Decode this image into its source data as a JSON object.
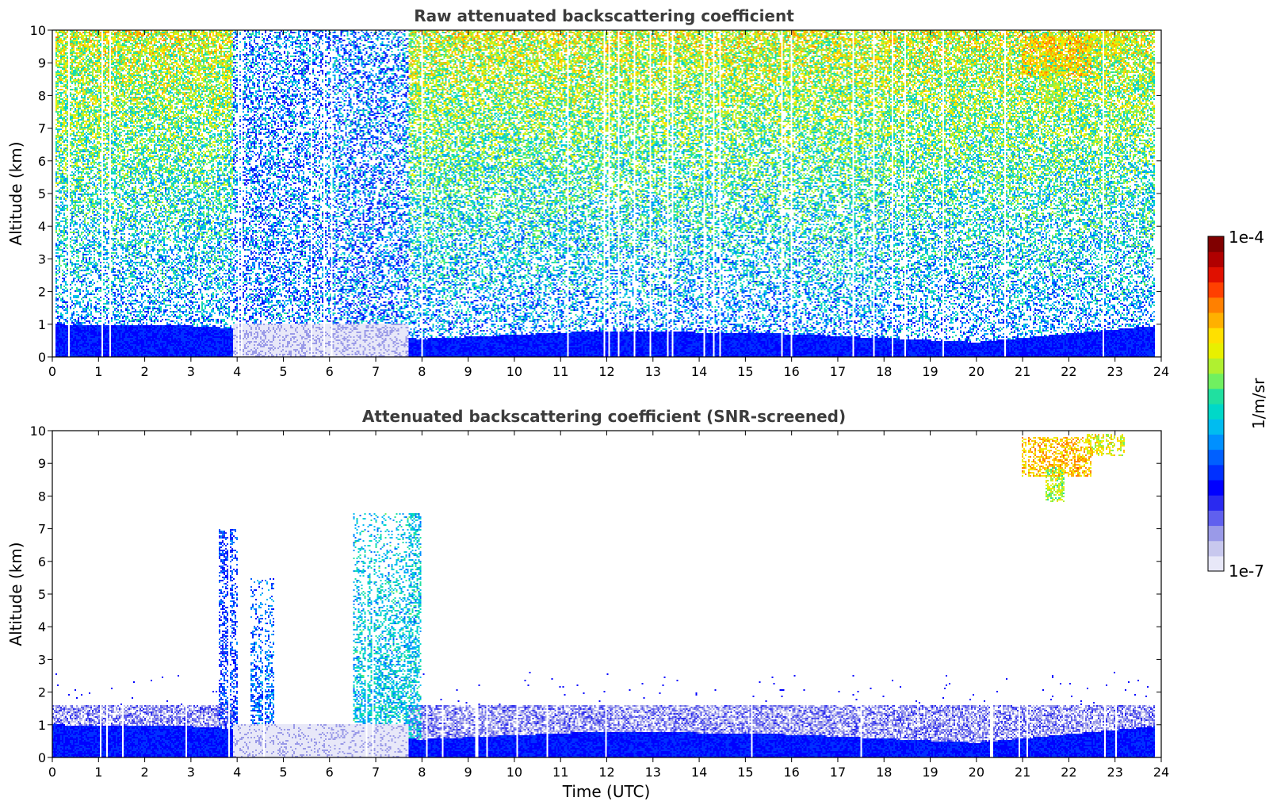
{
  "colors": {
    "colormap": [
      "#e8e8f8",
      "#c8c8ee",
      "#9a9ae8",
      "#6060ee",
      "#2a2af0",
      "#0000ff",
      "#0030ff",
      "#0060ff",
      "#0090ff",
      "#00bcf0",
      "#00d8c8",
      "#20e0a0",
      "#70f060",
      "#b0f030",
      "#e8f000",
      "#ffe000",
      "#ffb000",
      "#ff8000",
      "#ff4000",
      "#e01000",
      "#b00000",
      "#800000"
    ],
    "noise_color": "#ffffff",
    "text": "#3c3c3c"
  },
  "chart_data": [
    {
      "type": "heatmap",
      "title": "Raw attenuated backscattering coefficient",
      "xlabel": "",
      "ylabel": "Altitude (km)",
      "xlim": [
        0,
        24
      ],
      "ylim": [
        0,
        10
      ],
      "xticks": [
        "0",
        "1",
        "2",
        "3",
        "4",
        "5",
        "6",
        "7",
        "8",
        "9",
        "10",
        "11",
        "12",
        "13",
        "14",
        "15",
        "16",
        "17",
        "18",
        "19",
        "20",
        "21",
        "22",
        "23",
        "24"
      ],
      "yticks": [
        "0",
        "1",
        "2",
        "3",
        "4",
        "5",
        "6",
        "7",
        "8",
        "9",
        "10"
      ],
      "data_end_hour": 23.85,
      "boundary_layer": [
        [
          0,
          1.0
        ],
        [
          3,
          0.95
        ],
        [
          3.6,
          0.9
        ],
        [
          8,
          0.55
        ],
        [
          12,
          0.8
        ],
        [
          16,
          0.7
        ],
        [
          20,
          0.45
        ],
        [
          23.85,
          0.95
        ]
      ],
      "fog_period": [
        3.9,
        7.7
      ],
      "fog_top_km": 1.0,
      "cirrus": [
        {
          "t": [
            21.0,
            22.5
          ],
          "alt": [
            8.6,
            9.8
          ],
          "level": 0.72
        },
        {
          "t": [
            22.4,
            23.2
          ],
          "alt": [
            9.2,
            9.9
          ],
          "level": 0.65
        },
        {
          "t": [
            21.5,
            21.9
          ],
          "alt": [
            7.8,
            8.9
          ],
          "level": 0.6
        }
      ],
      "noise": "high"
    },
    {
      "type": "heatmap",
      "title": "Attenuated backscattering coefficient (SNR-screened)",
      "xlabel": "Time (UTC)",
      "ylabel": "Altitude (km)",
      "xlim": [
        0,
        24
      ],
      "ylim": [
        0,
        10
      ],
      "xticks": [
        "0",
        "1",
        "2",
        "3",
        "4",
        "5",
        "6",
        "7",
        "8",
        "9",
        "10",
        "11",
        "12",
        "13",
        "14",
        "15",
        "16",
        "17",
        "18",
        "19",
        "20",
        "21",
        "22",
        "23",
        "24"
      ],
      "yticks": [
        "0",
        "1",
        "2",
        "3",
        "4",
        "5",
        "6",
        "7",
        "8",
        "9",
        "10"
      ],
      "data_end_hour": 23.85,
      "boundary_layer": [
        [
          0,
          1.0
        ],
        [
          3,
          0.95
        ],
        [
          3.6,
          0.9
        ],
        [
          8,
          0.55
        ],
        [
          12,
          0.8
        ],
        [
          16,
          0.7
        ],
        [
          20,
          0.45
        ],
        [
          23.85,
          0.95
        ]
      ],
      "aerosol_top_km": 1.6,
      "fog_period": [
        3.9,
        7.7
      ],
      "fog_top_km": 1.0,
      "rain_streaks": [
        {
          "t": [
            3.6,
            4.0
          ],
          "alt_max": 7.0,
          "level": 0.3
        },
        {
          "t": [
            4.3,
            4.8
          ],
          "alt_max": 5.5,
          "level": 0.35
        },
        {
          "t": [
            6.5,
            8.0
          ],
          "alt_max": 7.5,
          "level": 0.45
        }
      ],
      "cirrus": [
        {
          "t": [
            21.0,
            22.5
          ],
          "alt": [
            8.6,
            9.8
          ],
          "level": 0.72
        },
        {
          "t": [
            22.4,
            23.2
          ],
          "alt": [
            9.2,
            9.9
          ],
          "level": 0.65
        },
        {
          "t": [
            21.5,
            21.9
          ],
          "alt": [
            7.8,
            8.9
          ],
          "level": 0.6
        }
      ],
      "noise": "screened"
    }
  ],
  "colorbar": {
    "label": "1/m/sr",
    "min_label": "1e-7",
    "max_label": "1e-4",
    "range": [
      1e-07,
      0.0001
    ],
    "scale": "log"
  }
}
